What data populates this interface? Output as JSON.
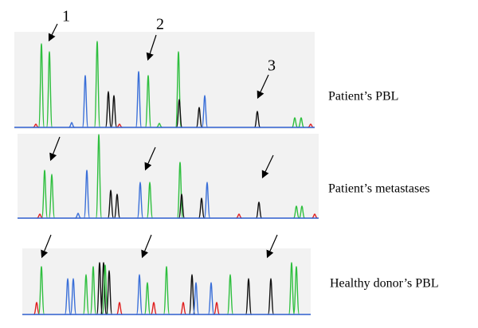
{
  "arrow_labels": [
    "1",
    "2",
    "3"
  ],
  "panels": [
    {
      "label": "Patient’s PBL"
    },
    {
      "label": "Patient’s metastases"
    },
    {
      "label": "Healthy donor’s PBL"
    }
  ]
}
